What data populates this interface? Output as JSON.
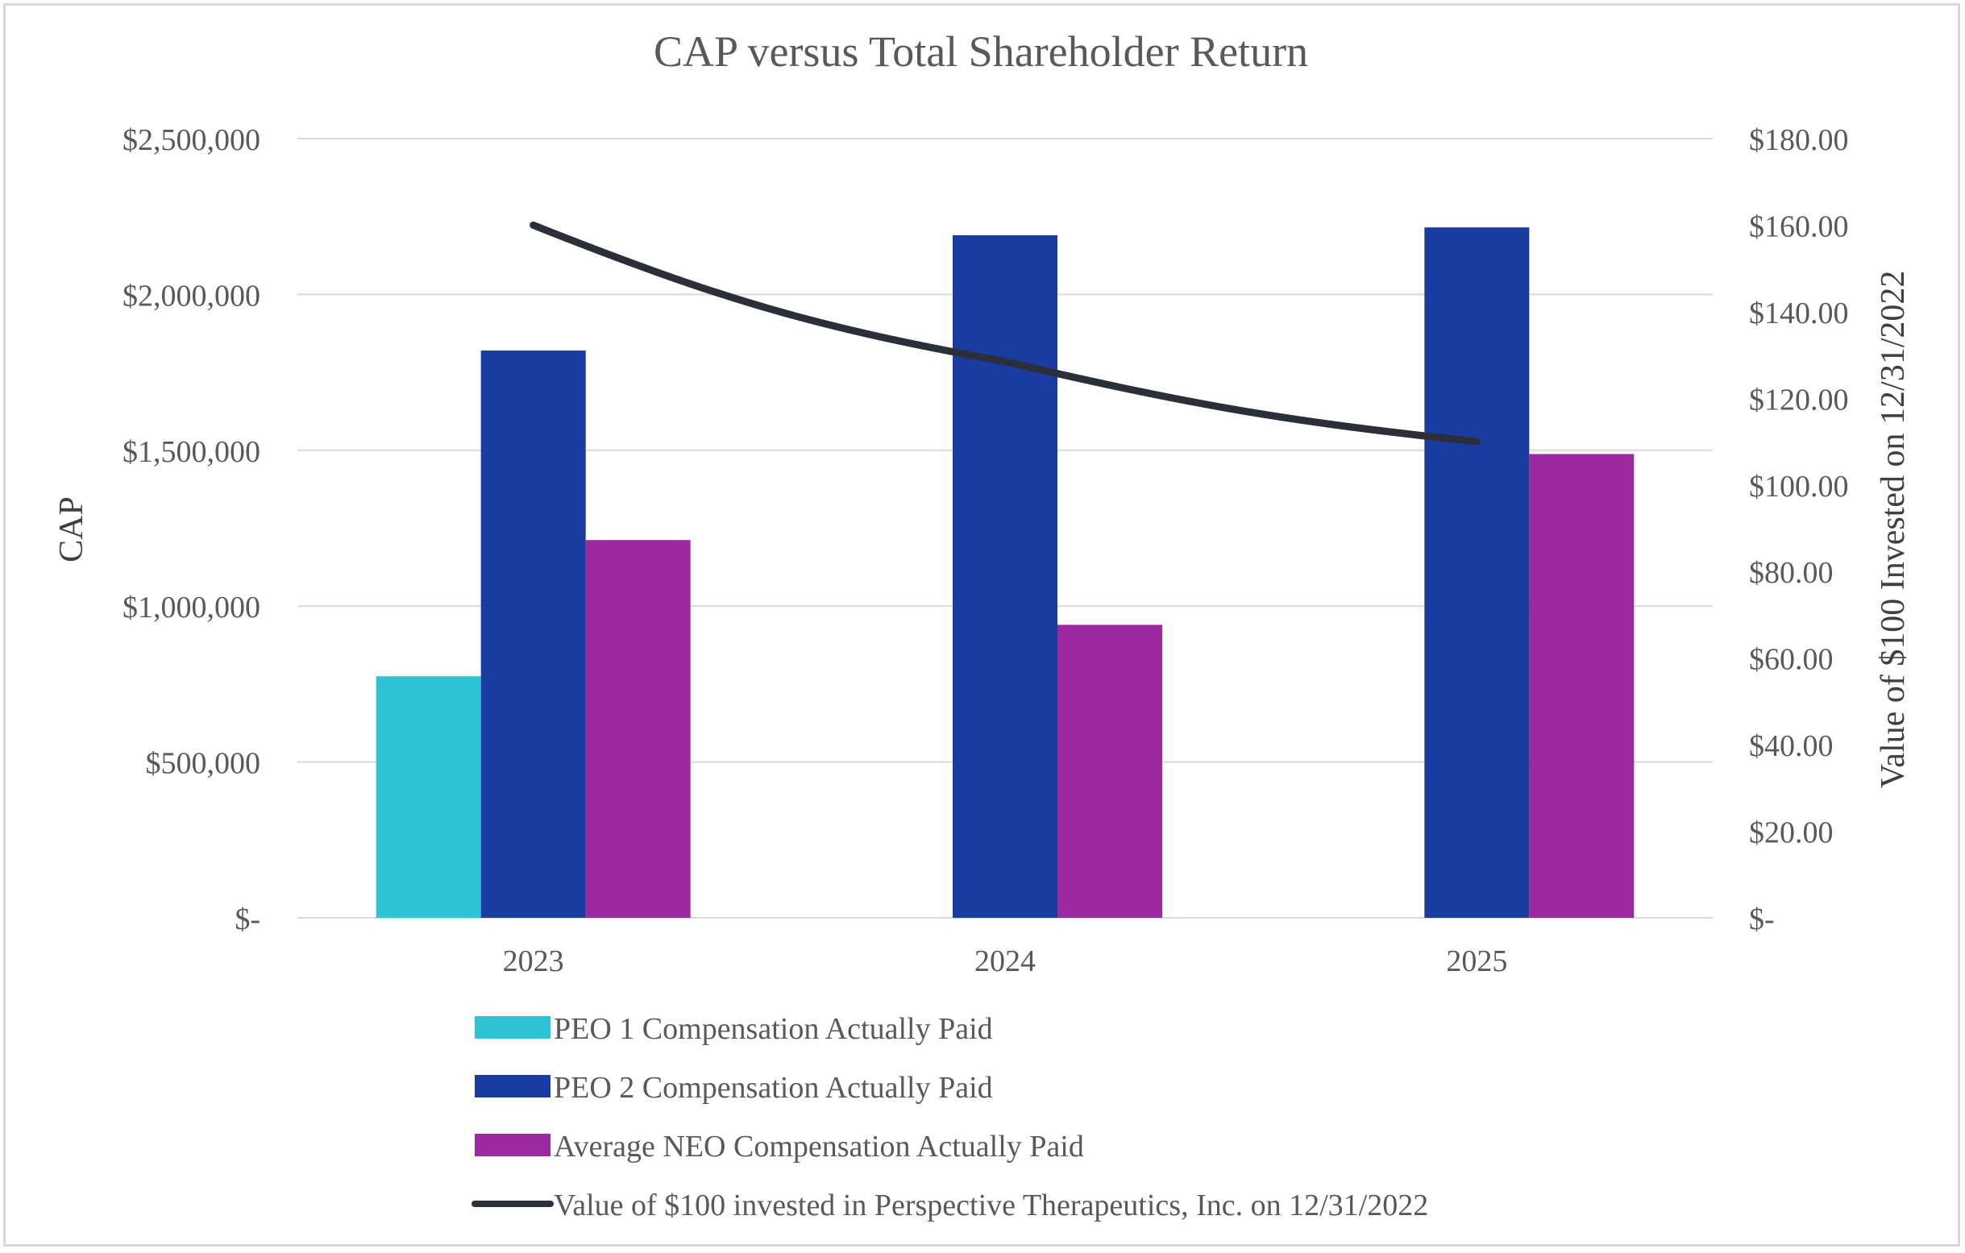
{
  "chart_data": {
    "type": "bar",
    "title": "CAP versus Total Shareholder Return",
    "ylabel": "CAP",
    "y2label": "Value of $100 Invested on 12/31/2022",
    "categories": [
      "2023",
      "2024",
      "2025"
    ],
    "ylim": [
      0,
      2500000
    ],
    "y2lim": [
      0,
      180
    ],
    "yticks": [
      "$-",
      "$500,000",
      "$1,000,000",
      "$1,500,000",
      "$2,000,000",
      "$2,500,000"
    ],
    "y2ticks": [
      "$-",
      "$20.00",
      "$40.00",
      "$60.00",
      "$80.00",
      "$100.00",
      "$120.00",
      "$140.00",
      "$160.00",
      "$180.00"
    ],
    "grid": true,
    "legend_position": "bottom",
    "series": [
      {
        "name": "PEO 1 Compensation Actually Paid",
        "type": "bar",
        "color": "#2EC4D6",
        "values": [
          775000,
          null,
          null
        ]
      },
      {
        "name": "PEO 2 Compensation Actually Paid",
        "type": "bar",
        "color": "#1A3BA0",
        "values": [
          1820000,
          2190000,
          2215000
        ]
      },
      {
        "name": "Average NEO Compensation Actually Paid",
        "type": "bar",
        "color": "#9B2A9E",
        "values": [
          1212000,
          940000,
          1488000
        ]
      },
      {
        "name": "Value of $100 invested in Perspective Therapeutics, Inc. on 12/31/2022",
        "type": "line",
        "axis": "right",
        "color": "#2B2F3A",
        "values": [
          160.0,
          128.5,
          110.0
        ]
      }
    ]
  }
}
